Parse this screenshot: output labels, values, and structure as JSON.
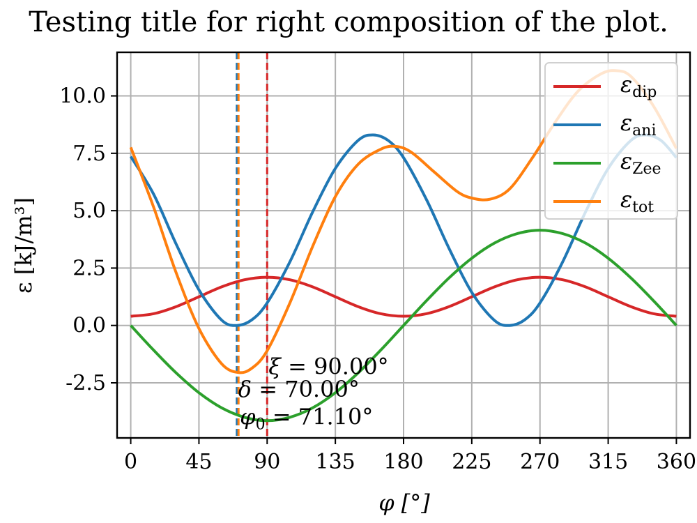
{
  "chart_data": {
    "type": "line",
    "title": "Testing title for right composition of the plot.",
    "xlabel": "φ [°]",
    "ylabel": "ε [kJ/m³]",
    "xlim": [
      -9,
      369
    ],
    "ylim": [
      -4.9,
      11.9
    ],
    "xticks": [
      0,
      45,
      90,
      135,
      180,
      225,
      270,
      315,
      360
    ],
    "yticks": [
      -2.5,
      0.0,
      2.5,
      5.0,
      7.5,
      10.0
    ],
    "ytick_labels": [
      "-2.5",
      "0.0",
      "2.5",
      "5.0",
      "7.5",
      "10.0"
    ],
    "grid": true,
    "legend_position": "top-right",
    "series": [
      {
        "name": "ε",
        "subscript": "dip",
        "color": "#d62728",
        "x": [
          0,
          15,
          30,
          45,
          60,
          75,
          90,
          105,
          120,
          135,
          150,
          165,
          180,
          195,
          210,
          225,
          240,
          255,
          270,
          285,
          300,
          315,
          330,
          345,
          360
        ],
        "y": [
          0.4,
          0.51,
          0.82,
          1.25,
          1.68,
          1.99,
          2.1,
          1.99,
          1.68,
          1.25,
          0.82,
          0.51,
          0.4,
          0.51,
          0.82,
          1.25,
          1.68,
          1.99,
          2.1,
          1.99,
          1.68,
          1.25,
          0.82,
          0.51,
          0.4
        ]
      },
      {
        "name": "ε",
        "subscript": "ani",
        "color": "#1f77b4",
        "x": [
          0,
          15,
          30,
          45,
          60,
          70,
          80,
          90,
          105,
          120,
          135,
          150,
          160,
          170,
          180,
          195,
          210,
          225,
          240,
          250,
          260,
          270,
          285,
          300,
          315,
          330,
          340,
          350,
          360
        ],
        "y": [
          7.36,
          5.73,
          3.54,
          1.55,
          0.23,
          0.0,
          0.25,
          0.98,
          2.77,
          4.94,
          6.84,
          8.06,
          8.3,
          8.05,
          7.31,
          5.5,
          3.36,
          1.44,
          0.22,
          0.0,
          0.25,
          0.98,
          2.77,
          4.94,
          6.84,
          8.06,
          8.3,
          8.05,
          7.31
        ]
      },
      {
        "name": "ε",
        "subscript": "Zee",
        "color": "#2ca02c",
        "x": [
          0,
          15,
          30,
          45,
          60,
          75,
          90,
          105,
          120,
          135,
          150,
          165,
          180,
          195,
          210,
          225,
          240,
          255,
          270,
          285,
          300,
          315,
          330,
          345,
          360
        ],
        "y": [
          0.0,
          -1.07,
          -2.07,
          -2.93,
          -3.59,
          -4.0,
          -4.15,
          -4.0,
          -3.59,
          -2.93,
          -2.07,
          -1.07,
          0.0,
          1.07,
          2.07,
          2.93,
          3.59,
          4.0,
          4.15,
          4.0,
          3.59,
          2.93,
          2.07,
          1.07,
          0.0
        ]
      },
      {
        "name": "ε",
        "subscript": "tot",
        "color": "#ff7f0e",
        "x": [
          0,
          15,
          30,
          45,
          60,
          71,
          80,
          90,
          105,
          120,
          135,
          150,
          165,
          175,
          185,
          200,
          215,
          225,
          237,
          250,
          265,
          280,
          295,
          310,
          320,
          330,
          345,
          360
        ],
        "y": [
          7.76,
          5.17,
          2.29,
          -0.13,
          -1.67,
          -2.05,
          -1.86,
          -1.1,
          0.98,
          3.44,
          5.61,
          7.02,
          7.68,
          7.8,
          7.55,
          6.7,
          5.85,
          5.55,
          5.5,
          5.95,
          7.3,
          8.85,
          10.2,
          10.95,
          11.1,
          10.85,
          9.55,
          7.71
        ]
      }
    ],
    "vlines": [
      {
        "x": 70.0,
        "color": "#1f77b4",
        "style": "dashed"
      },
      {
        "x": 71.1,
        "color": "#ff7f0e",
        "style": "dashed"
      },
      {
        "x": 90.0,
        "color": "#d62728",
        "style": "dashed"
      }
    ],
    "annotations": [
      {
        "symbol": "ξ",
        "sub": "",
        "text": " = 90.00°",
        "x": 90,
        "y": -1.75
      },
      {
        "symbol": "δ",
        "sub": "",
        "text": " = 70.00°",
        "x": 70,
        "y": -2.75
      },
      {
        "symbol": "φ",
        "sub": "0",
        "text": " = 71.10°",
        "x": 71.1,
        "y": -3.95
      }
    ]
  }
}
